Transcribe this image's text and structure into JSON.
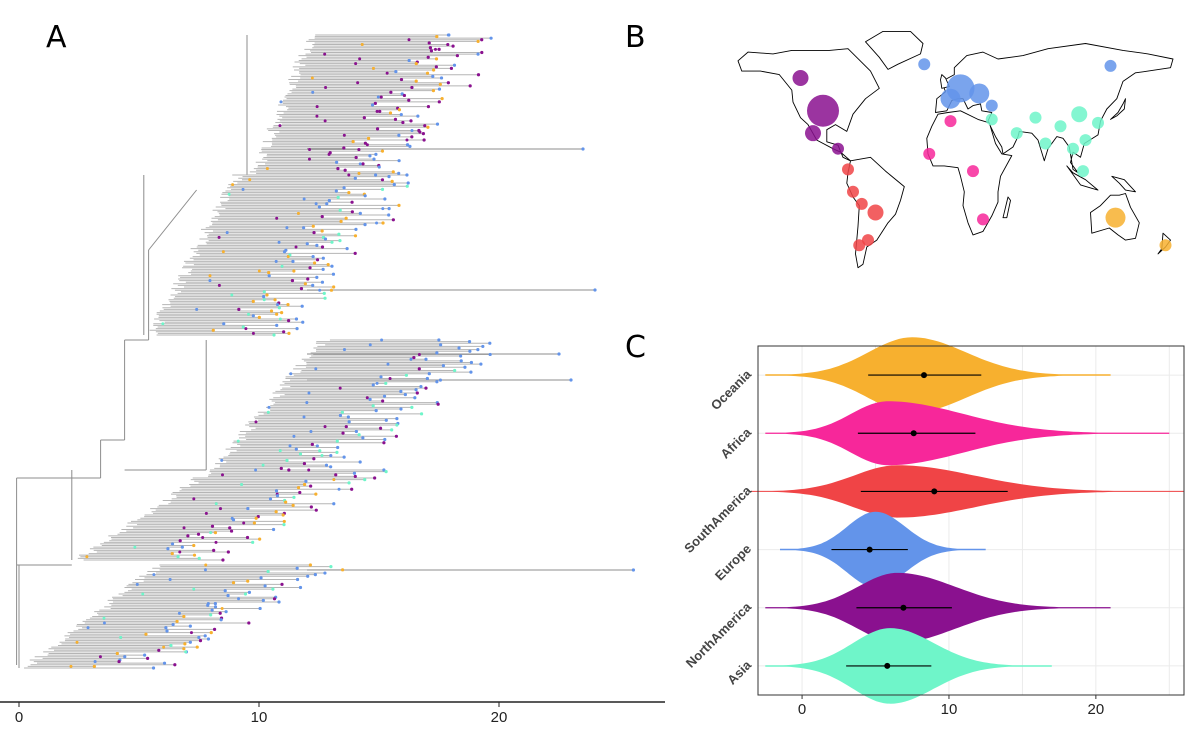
{
  "panels": {
    "a": "A",
    "b": "B",
    "c": "C"
  },
  "colors": {
    "Oceania": "#f7b02f",
    "Africa": "#f7279a",
    "SouthAmerica": "#f04446",
    "Europe": "#6394ea",
    "NorthAmerica": "#8a118f",
    "Asia": "#6ff5c9",
    "branch": "#8c8c8c",
    "tree_fill": "#b5b5b5"
  },
  "chart_data": [
    {
      "type": "tree",
      "panel": "A",
      "title": "",
      "x_ticks": [
        0,
        10,
        20
      ],
      "xlim": [
        -0.5,
        27
      ],
      "tip_groups": [
        "NorthAmerica",
        "Europe",
        "Asia",
        "Oceania",
        "SouthAmerica",
        "Africa"
      ]
    },
    {
      "type": "scatter",
      "panel": "B",
      "title": "",
      "description_points": [
        {
          "region": "NorthAmerica",
          "lon": -118,
          "lat": 56,
          "size": 2
        },
        {
          "region": "NorthAmerica",
          "lon": -100,
          "lat": 37,
          "size": 6
        },
        {
          "region": "NorthAmerica",
          "lon": -108,
          "lat": 24,
          "size": 2
        },
        {
          "region": "NorthAmerica",
          "lon": -88,
          "lat": 15,
          "size": 1
        },
        {
          "region": "SouthAmerica",
          "lon": -80,
          "lat": 3,
          "size": 1
        },
        {
          "region": "SouthAmerica",
          "lon": -76,
          "lat": -10,
          "size": 1
        },
        {
          "region": "SouthAmerica",
          "lon": -69,
          "lat": -17,
          "size": 1
        },
        {
          "region": "SouthAmerica",
          "lon": -58,
          "lat": -22,
          "size": 2
        },
        {
          "region": "SouthAmerica",
          "lon": -64,
          "lat": -38,
          "size": 1
        },
        {
          "region": "SouthAmerica",
          "lon": -71,
          "lat": -41,
          "size": 1
        },
        {
          "region": "Europe",
          "lon": -19,
          "lat": 64,
          "size": 1
        },
        {
          "region": "Europe",
          "lon": 10,
          "lat": 50,
          "size": 5
        },
        {
          "region": "Europe",
          "lon": 25,
          "lat": 47,
          "size": 3
        },
        {
          "region": "Europe",
          "lon": 2,
          "lat": 44,
          "size": 3
        },
        {
          "region": "Europe",
          "lon": 130,
          "lat": 63,
          "size": 1
        },
        {
          "region": "Europe",
          "lon": 35,
          "lat": 40,
          "size": 1
        },
        {
          "region": "Africa",
          "lon": -15,
          "lat": 12,
          "size": 1
        },
        {
          "region": "Africa",
          "lon": 2,
          "lat": 31,
          "size": 1
        },
        {
          "region": "Africa",
          "lon": 20,
          "lat": 2,
          "size": 1
        },
        {
          "region": "Africa",
          "lon": 28,
          "lat": -26,
          "size": 1
        },
        {
          "region": "Asia",
          "lon": 35,
          "lat": 32,
          "size": 1
        },
        {
          "region": "Asia",
          "lon": 55,
          "lat": 24,
          "size": 1
        },
        {
          "region": "Asia",
          "lon": 70,
          "lat": 33,
          "size": 1
        },
        {
          "region": "Asia",
          "lon": 78,
          "lat": 18,
          "size": 1
        },
        {
          "region": "Asia",
          "lon": 90,
          "lat": 28,
          "size": 1
        },
        {
          "region": "Asia",
          "lon": 105,
          "lat": 35,
          "size": 2
        },
        {
          "region": "Asia",
          "lon": 100,
          "lat": 15,
          "size": 1
        },
        {
          "region": "Asia",
          "lon": 110,
          "lat": 20,
          "size": 1
        },
        {
          "region": "Asia",
          "lon": 120,
          "lat": 30,
          "size": 1
        },
        {
          "region": "Asia",
          "lon": 108,
          "lat": 2,
          "size": 1
        },
        {
          "region": "Oceania",
          "lon": 134,
          "lat": -25,
          "size": 3
        },
        {
          "region": "Oceania",
          "lon": 174,
          "lat": -41,
          "size": 1
        }
      ]
    },
    {
      "type": "violin",
      "panel": "C",
      "title": "",
      "x_ticks": [
        0,
        10,
        20
      ],
      "xlim": [
        -3,
        26
      ],
      "categories": [
        "Oceania",
        "Africa",
        "SouthAmerica",
        "Europe",
        "NorthAmerica",
        "Asia"
      ],
      "series": [
        {
          "name": "Oceania",
          "min": -2.5,
          "max": 21,
          "mean": 8.3,
          "ci": [
            4.5,
            12.2
          ],
          "mode": 7.5,
          "halfwidth": 0.65
        },
        {
          "name": "Africa",
          "min": -2.5,
          "max": 25,
          "mean": 7.6,
          "ci": [
            3.8,
            11.8
          ],
          "mode": 5.8,
          "halfwidth": 0.55
        },
        {
          "name": "SouthAmerica",
          "min": -3.5,
          "max": 26,
          "mean": 9.0,
          "ci": [
            4.0,
            14.0
          ],
          "mode": 6.5,
          "halfwidth": 0.45
        },
        {
          "name": "Europe",
          "min": -1.5,
          "max": 12.5,
          "mean": 4.6,
          "ci": [
            2.0,
            7.2
          ],
          "mode": 5.0,
          "halfwidth": 0.65
        },
        {
          "name": "NorthAmerica",
          "min": -2.5,
          "max": 21,
          "mean": 6.9,
          "ci": [
            3.7,
            10.2
          ],
          "mode": 6.5,
          "halfwidth": 0.6
        },
        {
          "name": "Asia",
          "min": -2.5,
          "max": 17,
          "mean": 5.8,
          "ci": [
            3.0,
            8.8
          ],
          "mode": 6.0,
          "halfwidth": 0.65
        }
      ]
    }
  ]
}
